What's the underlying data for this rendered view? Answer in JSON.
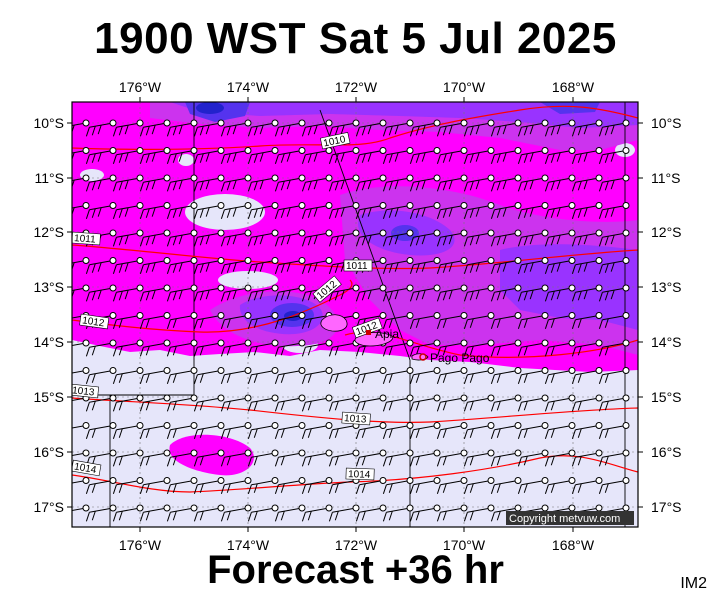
{
  "title": "1900 WST Sat 5 Jul 2025",
  "subtitle": "Forecast +36 hr",
  "corner_tag": "IM2",
  "copyright": "Copyright metvuw.com",
  "longitude_ticks": [
    "176°W",
    "174°W",
    "172°W",
    "170°W",
    "168°W"
  ],
  "latitude_ticks": [
    "10°S",
    "11°S",
    "12°S",
    "13°S",
    "14°S",
    "15°S",
    "16°S",
    "17°S"
  ],
  "places": [
    {
      "name": "Apia",
      "label": "Apia"
    },
    {
      "name": "Pago Pago",
      "label": "Pago Pago"
    }
  ],
  "isobar_labels": [
    "1010",
    "1011",
    "1011",
    "1012",
    "1012",
    "1012",
    "1013",
    "1013",
    "1014",
    "1014"
  ],
  "colors": {
    "light": "#e6e6fa",
    "magenta": "#ff00ff",
    "violet": "#cc33ee",
    "purple": "#9933ff",
    "blue": "#5533ee",
    "deep_blue": "#2222cc",
    "isobar": "#ff0000",
    "place_marker": "#cc0000"
  },
  "chart_data": {
    "type": "map",
    "xlim_deg_w": [
      177.2,
      166.8
    ],
    "ylim_deg_s": [
      9.7,
      17.3
    ],
    "isobars_hpa": [
      1010,
      1011,
      1012,
      1013,
      1014
    ],
    "places": [
      {
        "name": "Apia",
        "lon_w": 171.75,
        "lat_s": 13.83
      },
      {
        "name": "Pago Pago",
        "lon_w": 170.7,
        "lat_s": 14.28
      }
    ]
  }
}
